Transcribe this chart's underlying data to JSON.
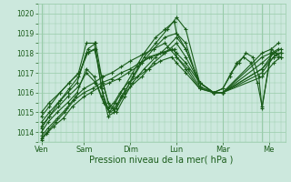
{
  "xlabel": "Pression niveau de la mer( hPa )",
  "bg_color": "#cce8dd",
  "grid_color": "#99ccaa",
  "line_color": "#1a5c1a",
  "marker": "+",
  "marker_size": 3,
  "marker_lw": 0.8,
  "line_width": 0.8,
  "xlim": [
    0,
    5.35
  ],
  "ylim": [
    1013.5,
    1020.5
  ],
  "yticks": [
    1014,
    1015,
    1016,
    1017,
    1018,
    1019,
    1020
  ],
  "ytick_fontsize": 5.5,
  "xtick_fontsize": 6,
  "xlabel_fontsize": 7,
  "day_labels": [
    "Ven",
    "Sam",
    "Dim",
    "Lun",
    "Mar",
    "Me"
  ],
  "day_positions": [
    0.08,
    1.0,
    2.0,
    3.0,
    4.0,
    5.0
  ],
  "vline_positions": [
    0.08,
    1.0,
    2.0,
    3.0,
    4.0,
    4.85
  ],
  "series": [
    {
      "x": [
        0.08,
        0.18,
        0.35,
        0.55,
        0.75,
        1.0,
        1.15,
        1.35,
        1.55,
        1.75,
        1.95,
        2.15,
        2.4,
        2.65,
        2.9,
        3.0,
        3.2,
        3.5,
        3.8,
        4.0,
        4.85,
        5.05,
        5.15,
        5.25
      ],
      "y": [
        1013.6,
        1013.9,
        1014.3,
        1014.7,
        1015.3,
        1015.8,
        1016.0,
        1016.3,
        1016.5,
        1016.7,
        1017.0,
        1017.3,
        1017.8,
        1018.0,
        1018.2,
        1018.0,
        1017.5,
        1016.5,
        1016.0,
        1016.0,
        1018.0,
        1018.2,
        1018.0,
        1017.8
      ]
    },
    {
      "x": [
        0.08,
        0.2,
        0.38,
        0.58,
        0.78,
        1.0,
        1.18,
        1.38,
        1.6,
        1.8,
        2.0,
        2.2,
        2.45,
        2.7,
        2.95,
        3.0,
        3.25,
        3.5,
        3.8,
        4.0,
        4.85,
        5.05,
        5.2
      ],
      "y": [
        1013.7,
        1014.0,
        1014.5,
        1015.0,
        1015.6,
        1016.0,
        1016.2,
        1016.5,
        1016.7,
        1017.0,
        1017.2,
        1017.5,
        1017.8,
        1018.0,
        1018.2,
        1017.8,
        1017.2,
        1016.3,
        1016.0,
        1016.0,
        1017.8,
        1018.0,
        1017.8
      ]
    },
    {
      "x": [
        0.08,
        0.22,
        0.42,
        0.62,
        0.82,
        1.0,
        1.22,
        1.4,
        1.6,
        1.8,
        2.0,
        2.25,
        2.5,
        2.75,
        3.0,
        3.2,
        3.5,
        3.8,
        4.0,
        4.85,
        5.1,
        5.25
      ],
      "y": [
        1013.8,
        1014.2,
        1014.7,
        1015.2,
        1015.8,
        1016.2,
        1016.5,
        1016.8,
        1017.0,
        1017.3,
        1017.6,
        1017.9,
        1018.2,
        1018.5,
        1017.8,
        1017.2,
        1016.2,
        1016.0,
        1016.0,
        1017.5,
        1018.0,
        1018.0
      ]
    },
    {
      "x": [
        0.08,
        0.22,
        0.42,
        0.65,
        0.85,
        1.05,
        1.22,
        1.38,
        1.52,
        1.65,
        1.78,
        1.95,
        2.15,
        2.4,
        2.65,
        2.9,
        3.0,
        3.2,
        3.5,
        3.8,
        4.0,
        4.85,
        5.1,
        5.25
      ],
      "y": [
        1014.0,
        1014.5,
        1015.0,
        1015.5,
        1016.0,
        1017.2,
        1016.8,
        1015.8,
        1015.2,
        1015.5,
        1016.0,
        1016.5,
        1016.8,
        1017.2,
        1017.6,
        1017.8,
        1017.5,
        1017.0,
        1016.2,
        1016.0,
        1016.0,
        1017.2,
        1017.8,
        1018.0
      ]
    },
    {
      "x": [
        0.08,
        0.25,
        0.45,
        0.65,
        0.88,
        1.05,
        1.25,
        1.42,
        1.55,
        1.68,
        1.85,
        2.05,
        2.3,
        2.55,
        2.75,
        2.95,
        3.0,
        3.2,
        3.5,
        3.8,
        4.0,
        4.85,
        5.1,
        5.25
      ],
      "y": [
        1014.2,
        1014.8,
        1015.3,
        1015.8,
        1016.3,
        1017.0,
        1016.5,
        1015.5,
        1015.0,
        1015.5,
        1016.2,
        1017.0,
        1018.0,
        1018.8,
        1019.2,
        1019.6,
        1019.0,
        1018.2,
        1016.5,
        1016.0,
        1016.0,
        1016.8,
        1017.5,
        1017.8
      ]
    },
    {
      "x": [
        0.08,
        0.25,
        0.45,
        0.65,
        0.85,
        1.05,
        1.22,
        1.38,
        1.52,
        1.65,
        1.82,
        2.0,
        2.25,
        2.5,
        2.75,
        3.0,
        3.2,
        3.5,
        3.8,
        4.0,
        4.85,
        5.1,
        5.25
      ],
      "y": [
        1014.3,
        1014.8,
        1015.5,
        1016.0,
        1016.5,
        1018.0,
        1018.2,
        1016.8,
        1015.5,
        1015.2,
        1015.8,
        1016.3,
        1016.8,
        1017.5,
        1018.0,
        1018.5,
        1017.8,
        1016.5,
        1016.0,
        1016.0,
        1017.0,
        1017.8,
        1018.0
      ]
    },
    {
      "x": [
        0.08,
        0.25,
        0.48,
        0.68,
        0.88,
        1.08,
        1.25,
        1.4,
        1.55,
        1.7,
        1.88,
        2.05,
        2.3,
        2.55,
        2.8,
        3.0,
        3.2,
        3.5,
        3.8,
        4.0,
        4.85,
        5.1,
        5.25
      ],
      "y": [
        1014.5,
        1015.0,
        1015.6,
        1016.2,
        1016.8,
        1018.2,
        1018.5,
        1016.5,
        1015.3,
        1015.0,
        1015.8,
        1016.5,
        1017.2,
        1017.8,
        1018.3,
        1018.8,
        1018.2,
        1016.5,
        1016.0,
        1016.0,
        1017.2,
        1018.0,
        1018.2
      ]
    },
    {
      "x": [
        0.08,
        0.25,
        0.48,
        0.68,
        0.88,
        1.05,
        1.22,
        1.38,
        1.52,
        1.65,
        1.8,
        2.0,
        2.25,
        2.5,
        2.75,
        3.0,
        3.2,
        3.5,
        3.8,
        4.0,
        4.15,
        4.3,
        4.45,
        4.62,
        4.75,
        4.85,
        5.05,
        5.2
      ],
      "y": [
        1014.8,
        1015.3,
        1016.0,
        1016.5,
        1017.0,
        1018.5,
        1018.5,
        1016.2,
        1014.8,
        1015.0,
        1015.8,
        1016.5,
        1017.5,
        1018.2,
        1018.8,
        1019.0,
        1018.5,
        1016.3,
        1016.0,
        1016.2,
        1016.8,
        1017.5,
        1017.8,
        1017.5,
        1016.5,
        1015.3,
        1018.0,
        1018.2
      ]
    },
    {
      "x": [
        0.08,
        0.25,
        0.48,
        0.68,
        0.9,
        1.08,
        1.25,
        1.4,
        1.55,
        1.7,
        1.88,
        2.05,
        2.3,
        2.55,
        2.8,
        3.0,
        3.2,
        3.5,
        3.8,
        4.0,
        4.18,
        4.35,
        4.5,
        4.65,
        4.78,
        4.85,
        5.05,
        5.2
      ],
      "y": [
        1015.0,
        1015.5,
        1016.0,
        1016.5,
        1017.0,
        1018.0,
        1018.2,
        1016.0,
        1015.0,
        1015.2,
        1016.0,
        1016.8,
        1017.8,
        1018.5,
        1019.2,
        1019.8,
        1019.2,
        1016.5,
        1016.0,
        1016.2,
        1017.0,
        1017.5,
        1018.0,
        1017.8,
        1016.8,
        1015.2,
        1018.2,
        1018.5
      ]
    }
  ]
}
